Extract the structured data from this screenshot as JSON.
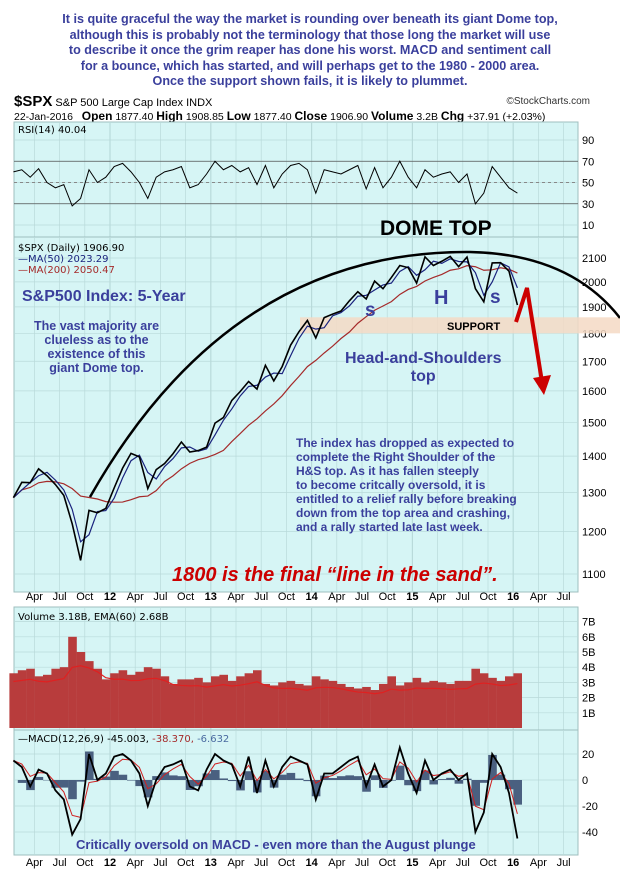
{
  "intro_text": [
    "It is quite graceful the way the market is rounding over beneath its giant Dome top,",
    "although this is probably not the terminology that those long the market will use",
    "to describe it once the grim reaper has done his worst. MACD and sentiment call",
    "for a bounce, which has started, and will perhaps get to the 1980 - 2000 area.",
    "Once the support shown fails, it is likely to plummet."
  ],
  "header": {
    "symbol": "$SPX",
    "name": "S&P 500 Large Cap Index",
    "exchange": "INDX",
    "credit": "©StockCharts.com",
    "date": "22-Jan-2016",
    "open_label": "Open",
    "open": "1877.40",
    "high_label": "High",
    "high": "1908.85",
    "low_label": "Low",
    "low": "1877.40",
    "close_label": "Close",
    "close": "1906.90",
    "volume_label": "Volume",
    "volume": "3.2B",
    "chg_label": "Chg",
    "chg": "+37.91 (+2.03%)"
  },
  "annotations": {
    "dome_top": "DOME TOP",
    "title": "S&P500 Index: 5-Year",
    "majority": [
      "The vast majority are",
      "clueless as to the",
      "existence of this",
      "giant Dome top."
    ],
    "s_left": "s",
    "h": "H",
    "s_right": "s",
    "support": "SUPPORT",
    "hs": [
      "Head-and-Shoulders",
      "top"
    ],
    "index_note": [
      "The index has dropped as expected to",
      "complete the Right Shoulder of the",
      "H&S top. As it has fallen steeply",
      "to become critcally oversold, it is",
      "entitled to a relief rally before breaking",
      "down from the top area and crashing,",
      "and a rally started late last week."
    ],
    "line_in_sand": "1800 is the final “line in the sand”.",
    "macd_note": "Critically oversold on MACD - even more than the August plunge"
  },
  "colors": {
    "panel_bg": "#d6f5f5",
    "grid": "#b9dada",
    "annotation": "#3a3f9c",
    "red": "#cc0000",
    "ma50": "#1a237e",
    "ma200": "#a52a2a",
    "volume": "#b83c3c",
    "support": "#f4d9c4"
  },
  "chart_data": {
    "type": "line",
    "x_ticks": [
      {
        "label": "Apr",
        "date": "2011-04"
      },
      {
        "label": "Jul",
        "date": "2011-07"
      },
      {
        "label": "Oct",
        "date": "2011-10"
      },
      {
        "label": "12",
        "date": "2012-01",
        "bold": true
      },
      {
        "label": "Apr",
        "date": "2012-04"
      },
      {
        "label": "Jul",
        "date": "2012-07"
      },
      {
        "label": "Oct",
        "date": "2012-10"
      },
      {
        "label": "13",
        "date": "2013-01",
        "bold": true
      },
      {
        "label": "Apr",
        "date": "2013-04"
      },
      {
        "label": "Jul",
        "date": "2013-07"
      },
      {
        "label": "Oct",
        "date": "2013-10"
      },
      {
        "label": "14",
        "date": "2014-01",
        "bold": true
      },
      {
        "label": "Apr",
        "date": "2014-04"
      },
      {
        "label": "Jul",
        "date": "2014-07"
      },
      {
        "label": "Oct",
        "date": "2014-10"
      },
      {
        "label": "15",
        "date": "2015-01",
        "bold": true
      },
      {
        "label": "Apr",
        "date": "2015-04"
      },
      {
        "label": "Jul",
        "date": "2015-07"
      },
      {
        "label": "Oct",
        "date": "2015-10"
      },
      {
        "label": "16",
        "date": "2016-01",
        "bold": true
      },
      {
        "label": "Apr",
        "date": "2016-04"
      },
      {
        "label": "Jul",
        "date": "2016-07"
      }
    ],
    "start_month": "2011-01",
    "rsi": {
      "label": "RSI(14) 40.04",
      "ticks": [
        90,
        70,
        50,
        30,
        10
      ],
      "levels": [
        70,
        30
      ],
      "values": [
        60,
        62,
        55,
        63,
        50,
        45,
        48,
        28,
        35,
        62,
        50,
        55,
        65,
        68,
        60,
        50,
        35,
        55,
        60,
        62,
        65,
        45,
        48,
        58,
        70,
        62,
        66,
        60,
        64,
        48,
        66,
        45,
        58,
        66,
        68,
        62,
        40,
        62,
        60,
        58,
        62,
        66,
        44,
        64,
        45,
        55,
        70,
        55,
        45,
        62,
        55,
        58,
        60,
        50,
        58,
        30,
        40,
        65,
        55,
        45,
        40
      ]
    },
    "price": {
      "label": "$SPX (Daily) 1906.90",
      "ma50_label": "MA(50) 2023.29",
      "ma200_label": "MA(200) 2050.47",
      "scale": "log",
      "ticks": [
        2100,
        2000,
        1900,
        1800,
        1700,
        1600,
        1500,
        1400,
        1300,
        1200,
        1100
      ],
      "monthly_close": [
        1286,
        1327,
        1326,
        1364,
        1345,
        1321,
        1292,
        1219,
        1131,
        1253,
        1247,
        1258,
        1312,
        1366,
        1408,
        1398,
        1310,
        1362,
        1379,
        1407,
        1441,
        1412,
        1416,
        1426,
        1498,
        1515,
        1569,
        1598,
        1631,
        1606,
        1686,
        1633,
        1682,
        1757,
        1806,
        1848,
        1783,
        1859,
        1872,
        1884,
        1924,
        1960,
        1931,
        2003,
        1972,
        2018,
        2068,
        2059,
        1995,
        2105,
        2068,
        2086,
        2107,
        2063,
        2104,
        1972,
        1920,
        2079,
        2080,
        2044,
        1907
      ],
      "support_range": [
        1800,
        1860
      ]
    },
    "volume": {
      "label": "Volume 3.18B, EMA(60) 2.68B",
      "ticks": [
        "7B",
        "6B",
        "5B",
        "4B",
        "3B",
        "2B",
        "1B"
      ],
      "unit": "B",
      "monthly": [
        3.6,
        3.8,
        3.9,
        3.4,
        3.5,
        3.9,
        4.0,
        6.0,
        5.0,
        4.4,
        3.9,
        3.2,
        3.6,
        3.8,
        3.5,
        3.7,
        4.0,
        3.9,
        3.4,
        2.9,
        3.2,
        3.2,
        3.3,
        3.0,
        3.4,
        3.5,
        3.1,
        3.4,
        3.6,
        3.8,
        2.9,
        2.8,
        3.0,
        3.1,
        2.9,
        2.8,
        3.4,
        3.2,
        3.1,
        2.9,
        2.7,
        2.6,
        2.7,
        2.5,
        2.9,
        3.4,
        2.8,
        3.0,
        3.3,
        3.0,
        3.1,
        3.0,
        2.9,
        3.1,
        3.1,
        3.9,
        3.6,
        3.3,
        3.1,
        3.4,
        3.6
      ]
    },
    "macd": {
      "label": "MACD(12,26,9)",
      "value": "-45.003",
      "signal": "-38.370",
      "histogram": "-6.632",
      "ticks": [
        20,
        0,
        -20,
        -40
      ],
      "values": [
        15,
        10,
        -5,
        8,
        5,
        -8,
        -15,
        -42,
        -30,
        20,
        0,
        5,
        18,
        20,
        15,
        5,
        -20,
        0,
        10,
        12,
        15,
        -5,
        -8,
        8,
        20,
        15,
        12,
        -5,
        18,
        -10,
        15,
        -5,
        10,
        18,
        15,
        12,
        -15,
        5,
        5,
        10,
        15,
        18,
        -5,
        12,
        -5,
        0,
        25,
        5,
        -10,
        15,
        0,
        5,
        8,
        0,
        5,
        -40,
        -25,
        20,
        10,
        -10,
        -45
      ]
    }
  }
}
